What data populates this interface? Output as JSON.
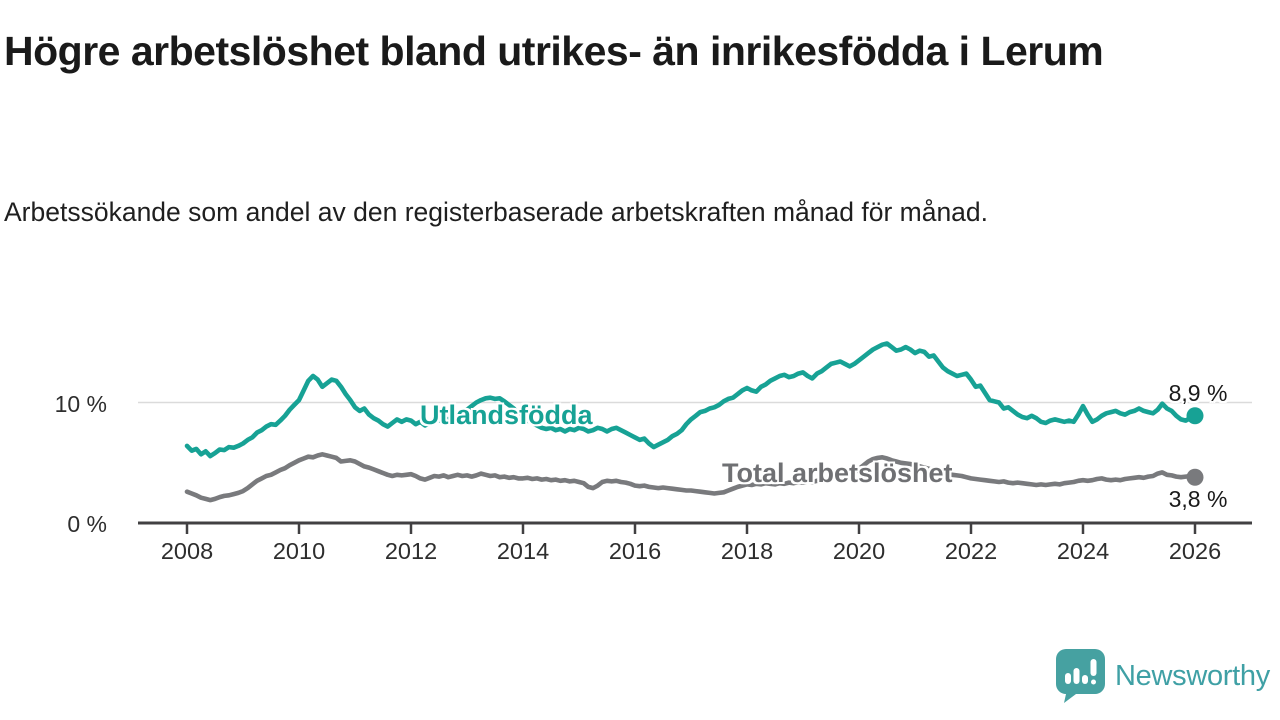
{
  "header": {
    "title": "Högre arbetslöshet bland utrikes- än inrikesfödda i Lerum",
    "subtitle": "Arbetssökande som andel av den registerbaserade arbetskraften månad för månad."
  },
  "chart_data": {
    "type": "line",
    "title": "Högre arbetslöshet bland utrikes- än inrikesfödda i Lerum",
    "x_start_year": 2008,
    "x_step": 0.0833333,
    "x_ticks": [
      2008,
      2010,
      2012,
      2014,
      2016,
      2018,
      2020,
      2022,
      2024,
      2026
    ],
    "ylim": [
      0,
      16
    ],
    "gridlines_y": [
      10
    ],
    "grid": "horizontal-10-only",
    "legend_position": "inline-on-line",
    "y_axis_labels": [
      {
        "value": 10,
        "label": "10 %"
      },
      {
        "value": 0,
        "label": "0 %"
      }
    ],
    "series": [
      {
        "name": "Utlandsfödda",
        "color": "#17A295",
        "end_value_label": "8,9 %",
        "end_value": 8.9,
        "values": [
          6.4,
          6.0,
          6.15,
          5.7,
          5.95,
          5.55,
          5.8,
          6.1,
          6.05,
          6.3,
          6.25,
          6.4,
          6.6,
          6.9,
          7.1,
          7.5,
          7.7,
          8.0,
          8.2,
          8.15,
          8.5,
          8.9,
          9.4,
          9.8,
          10.2,
          11.0,
          11.8,
          12.2,
          11.9,
          11.3,
          11.6,
          11.9,
          11.8,
          11.3,
          10.7,
          10.2,
          9.6,
          9.3,
          9.5,
          9.0,
          8.7,
          8.5,
          8.2,
          8.0,
          8.3,
          8.6,
          8.4,
          8.6,
          8.5,
          8.2,
          8.4,
          8.1,
          8.3,
          8.5,
          8.5,
          8.7,
          8.6,
          8.8,
          9.0,
          9.2,
          9.4,
          9.7,
          10.0,
          10.2,
          10.35,
          10.4,
          10.3,
          10.35,
          10.1,
          9.8,
          9.5,
          9.1,
          8.8,
          8.5,
          8.3,
          8.1,
          7.9,
          7.8,
          7.9,
          7.7,
          7.8,
          7.6,
          7.8,
          7.7,
          7.9,
          7.8,
          7.6,
          7.7,
          7.9,
          7.8,
          7.6,
          7.8,
          7.9,
          7.7,
          7.5,
          7.3,
          7.1,
          6.9,
          7.0,
          6.6,
          6.3,
          6.5,
          6.7,
          6.9,
          7.2,
          7.4,
          7.7,
          8.2,
          8.6,
          8.9,
          9.2,
          9.3,
          9.5,
          9.6,
          9.8,
          10.1,
          10.3,
          10.4,
          10.7,
          11.0,
          11.2,
          11.0,
          10.9,
          11.3,
          11.5,
          11.8,
          12.0,
          12.2,
          12.3,
          12.1,
          12.2,
          12.4,
          12.5,
          12.2,
          12.0,
          12.4,
          12.6,
          12.9,
          13.2,
          13.3,
          13.4,
          13.2,
          13.0,
          13.2,
          13.5,
          13.8,
          14.1,
          14.4,
          14.6,
          14.8,
          14.9,
          14.6,
          14.3,
          14.4,
          14.6,
          14.4,
          14.1,
          14.3,
          14.2,
          13.8,
          13.9,
          13.4,
          12.9,
          12.6,
          12.4,
          12.2,
          12.3,
          12.4,
          11.9,
          11.3,
          11.4,
          10.8,
          10.2,
          10.1,
          10.0,
          9.5,
          9.6,
          9.3,
          9.0,
          8.8,
          8.7,
          8.9,
          8.7,
          8.4,
          8.3,
          8.5,
          8.6,
          8.5,
          8.4,
          8.5,
          8.4,
          9.0,
          9.7,
          9.0,
          8.4,
          8.6,
          8.9,
          9.1,
          9.2,
          9.3,
          9.1,
          9.0,
          9.2,
          9.3,
          9.5,
          9.3,
          9.2,
          9.1,
          9.4,
          9.9,
          9.5,
          9.3,
          8.9,
          8.6,
          8.5,
          8.7,
          8.9
        ]
      },
      {
        "name": "Total arbetslöshet",
        "color": "#797A7D",
        "end_value_label": "3,8 %",
        "end_value": 3.8,
        "values": [
          2.6,
          2.45,
          2.3,
          2.1,
          2.0,
          1.9,
          2.0,
          2.15,
          2.25,
          2.3,
          2.4,
          2.5,
          2.65,
          2.9,
          3.2,
          3.5,
          3.7,
          3.9,
          4.0,
          4.2,
          4.4,
          4.55,
          4.8,
          5.0,
          5.2,
          5.35,
          5.5,
          5.45,
          5.6,
          5.7,
          5.6,
          5.5,
          5.4,
          5.1,
          5.15,
          5.2,
          5.1,
          4.9,
          4.7,
          4.6,
          4.45,
          4.3,
          4.15,
          4.0,
          3.9,
          4.0,
          3.95,
          4.0,
          4.05,
          3.9,
          3.7,
          3.6,
          3.75,
          3.9,
          3.85,
          3.95,
          3.8,
          3.9,
          4.0,
          3.9,
          3.95,
          3.85,
          3.95,
          4.1,
          4.0,
          3.9,
          3.95,
          3.8,
          3.85,
          3.75,
          3.8,
          3.7,
          3.7,
          3.75,
          3.65,
          3.7,
          3.6,
          3.65,
          3.55,
          3.6,
          3.5,
          3.55,
          3.45,
          3.5,
          3.4,
          3.3,
          3.0,
          2.9,
          3.1,
          3.4,
          3.5,
          3.45,
          3.5,
          3.4,
          3.35,
          3.25,
          3.1,
          3.05,
          3.1,
          3.0,
          2.95,
          2.9,
          2.95,
          2.9,
          2.85,
          2.8,
          2.75,
          2.7,
          2.7,
          2.65,
          2.6,
          2.55,
          2.5,
          2.45,
          2.5,
          2.55,
          2.7,
          2.85,
          3.0,
          3.1,
          3.2,
          3.15,
          3.25,
          3.2,
          3.3,
          3.25,
          3.2,
          3.3,
          3.25,
          3.35,
          3.3,
          3.4,
          3.35,
          3.45,
          3.4,
          3.5,
          3.45,
          3.55,
          3.6,
          3.7,
          3.8,
          3.9,
          4.0,
          4.2,
          4.5,
          4.8,
          5.1,
          5.3,
          5.4,
          5.45,
          5.35,
          5.2,
          5.1,
          5.0,
          4.95,
          4.9,
          4.8,
          4.7,
          4.6,
          4.5,
          4.4,
          4.3,
          4.2,
          4.1,
          4.0,
          3.95,
          3.9,
          3.8,
          3.7,
          3.65,
          3.6,
          3.55,
          3.5,
          3.45,
          3.4,
          3.45,
          3.35,
          3.3,
          3.35,
          3.3,
          3.25,
          3.2,
          3.15,
          3.2,
          3.15,
          3.2,
          3.25,
          3.2,
          3.3,
          3.35,
          3.4,
          3.5,
          3.55,
          3.5,
          3.55,
          3.65,
          3.7,
          3.6,
          3.55,
          3.6,
          3.55,
          3.65,
          3.7,
          3.75,
          3.8,
          3.75,
          3.85,
          3.9,
          4.1,
          4.2,
          4.0,
          3.95,
          3.85,
          3.8,
          3.85,
          3.9,
          3.8
        ]
      }
    ],
    "axis_color": "#414042",
    "gridline_color": "#dbdbdb",
    "tick_label_color": "#2e2e2e"
  },
  "branding": {
    "logo_text": "Newsworthy",
    "logo_color": "#3FA0A5",
    "logo_bubble_color": "#46A1A1",
    "logo_icon": "newsworthy-bar-chart-speech-bubble-icon"
  }
}
